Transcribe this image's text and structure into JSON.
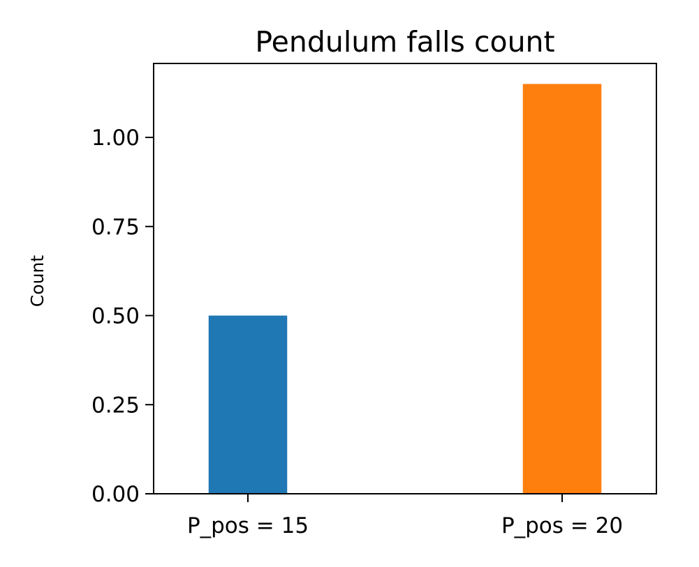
{
  "chart_data": {
    "type": "bar",
    "title": "Pendulum falls count",
    "xlabel": "",
    "ylabel": "Count",
    "categories": [
      "P_pos = 15",
      "P_pos = 20"
    ],
    "values": [
      0.5,
      1.15
    ],
    "bar_colors": [
      "#1f77b4",
      "#ff7f0e"
    ],
    "ylim": [
      0,
      1.2075
    ],
    "yticks": [
      0.0,
      0.25,
      0.5,
      0.75,
      1.0
    ],
    "ytick_labels": [
      "0.00",
      "0.25",
      "0.50",
      "0.75",
      "1.00"
    ],
    "grid": false,
    "legend": "none"
  }
}
